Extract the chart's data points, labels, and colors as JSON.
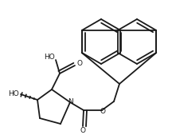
{
  "bg_color": "#ffffff",
  "line_color": "#1a1a1a",
  "line_width": 1.3,
  "font_size": 6.5,
  "figsize": [
    2.16,
    1.69
  ],
  "dpi": 100,
  "xlim": [
    0,
    216
  ],
  "ylim": [
    0,
    169
  ]
}
